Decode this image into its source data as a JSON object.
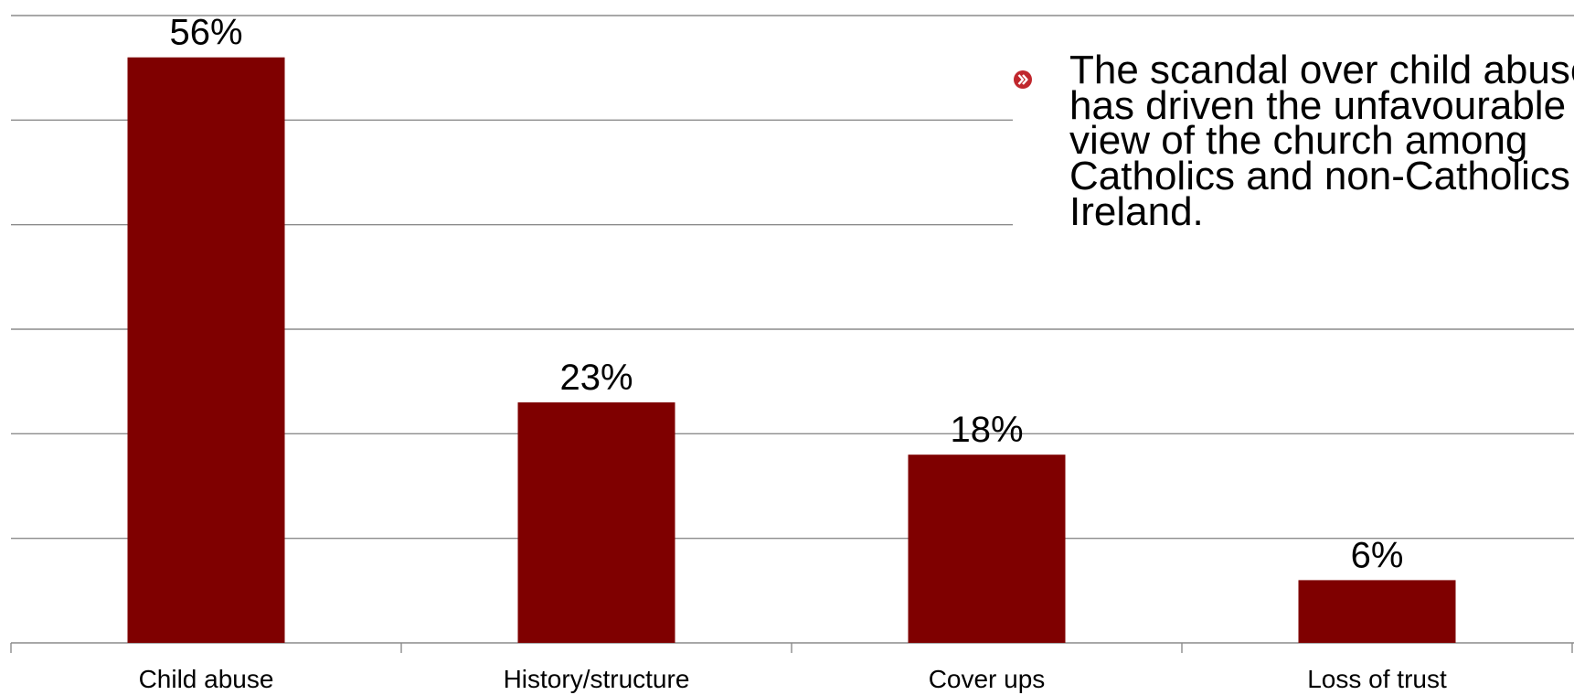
{
  "colors": {
    "bar": "#7f0000",
    "grid": "#8c8c8c",
    "axis": "#8c8c8c",
    "text": "#000000",
    "bullet_icon": "#c0272d"
  },
  "chart_data": {
    "type": "bar",
    "categories": [
      "Child abuse",
      "History/structure",
      "Cover ups",
      "Loss of trust"
    ],
    "values": [
      56,
      23,
      18,
      6
    ],
    "data_labels": [
      "56%",
      "23%",
      "18%",
      "6%"
    ],
    "ylim": [
      0,
      60
    ],
    "grid": true,
    "legend": "none",
    "title": "",
    "xlabel": "",
    "ylabel": ""
  },
  "callout": {
    "icon": "chevron-right-circle-icon",
    "text": "The scandal over child abuse\nhas driven the unfavourable\nview of the church among\nCatholics and non-Catholics in\nIreland."
  }
}
